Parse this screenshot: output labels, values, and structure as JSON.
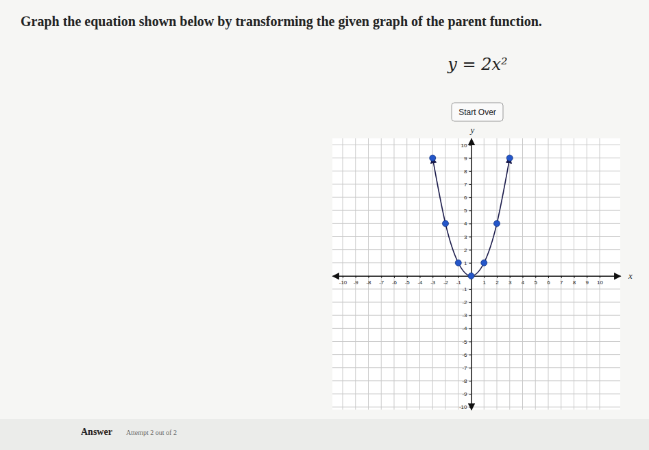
{
  "page": {
    "instruction": "Graph the equation shown below by transforming the given graph of the parent function.",
    "equation": "y = 2x²",
    "button": "Start Over",
    "answer_label": "Answer",
    "attempt": "Attempt 2 out of 2"
  },
  "chart_data": {
    "type": "line",
    "x_label": "x",
    "y_label": "y",
    "x": [
      -3,
      -2,
      -1,
      0,
      1,
      2,
      3
    ],
    "values": [
      9,
      4,
      1,
      0,
      1,
      4,
      9
    ],
    "color": "#2456c9",
    "marker": "circle",
    "grid": true,
    "xlim": [
      -10.8,
      11.6
    ],
    "ylim": [
      -10.2,
      10.5
    ],
    "xticks": [
      -10,
      -9,
      -8,
      -7,
      -6,
      -5,
      -4,
      -3,
      -2,
      -1,
      1,
      2,
      3,
      4,
      5,
      6,
      7,
      8,
      9,
      10
    ],
    "yticks": [
      -10,
      -9,
      -8,
      -7,
      -6,
      -5,
      -4,
      -3,
      -2,
      -1,
      1,
      2,
      3,
      4,
      5,
      6,
      7,
      8,
      9,
      10
    ]
  }
}
